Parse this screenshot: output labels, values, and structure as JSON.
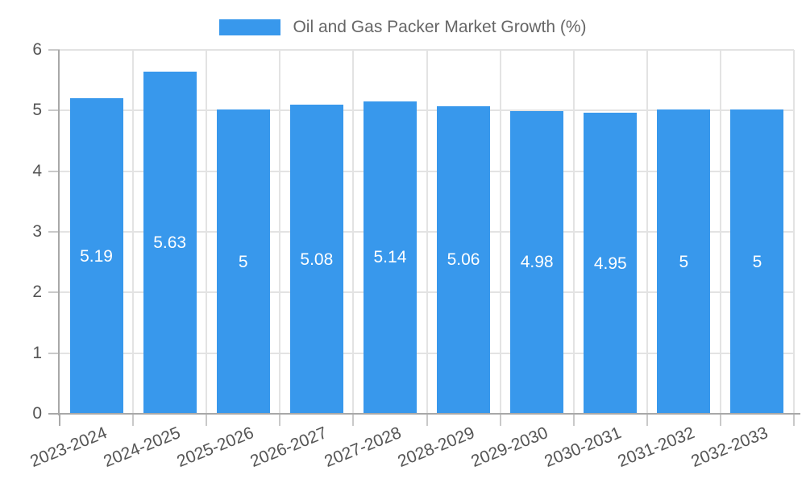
{
  "legend": {
    "label": "Oil and Gas Packer Market Growth (%)",
    "swatch_color": "#3898EC"
  },
  "chart_data": {
    "type": "bar",
    "title": "Oil and Gas Packer Market Growth (%)",
    "categories": [
      "2023-2024",
      "2024-2025",
      "2025-2026",
      "2026-2027",
      "2027-2028",
      "2028-2029",
      "2029-2030",
      "2030-2031",
      "2031-2032",
      "2032-2033"
    ],
    "values": [
      5.19,
      5.63,
      5,
      5.08,
      5.14,
      5.06,
      4.98,
      4.95,
      5,
      5
    ],
    "value_labels": [
      "5.19",
      "5.63",
      "5",
      "5.08",
      "5.14",
      "5.06",
      "4.98",
      "4.95",
      "5",
      "5"
    ],
    "xlabel": "",
    "ylabel": "",
    "ylim": [
      0,
      6
    ],
    "yticks": [
      0,
      1,
      2,
      3,
      4,
      5,
      6
    ],
    "grid": true,
    "legend_position": "top",
    "bar_color": "#3898EC",
    "value_label_color": "#ffffff"
  },
  "colors": {
    "bar": "#3898EC",
    "grid": "#e3e3e3",
    "axis": "#a8a8a8",
    "tick": "#c9c9c9",
    "axis_label": "#555555",
    "legend_text": "#666666",
    "background": "#ffffff"
  }
}
